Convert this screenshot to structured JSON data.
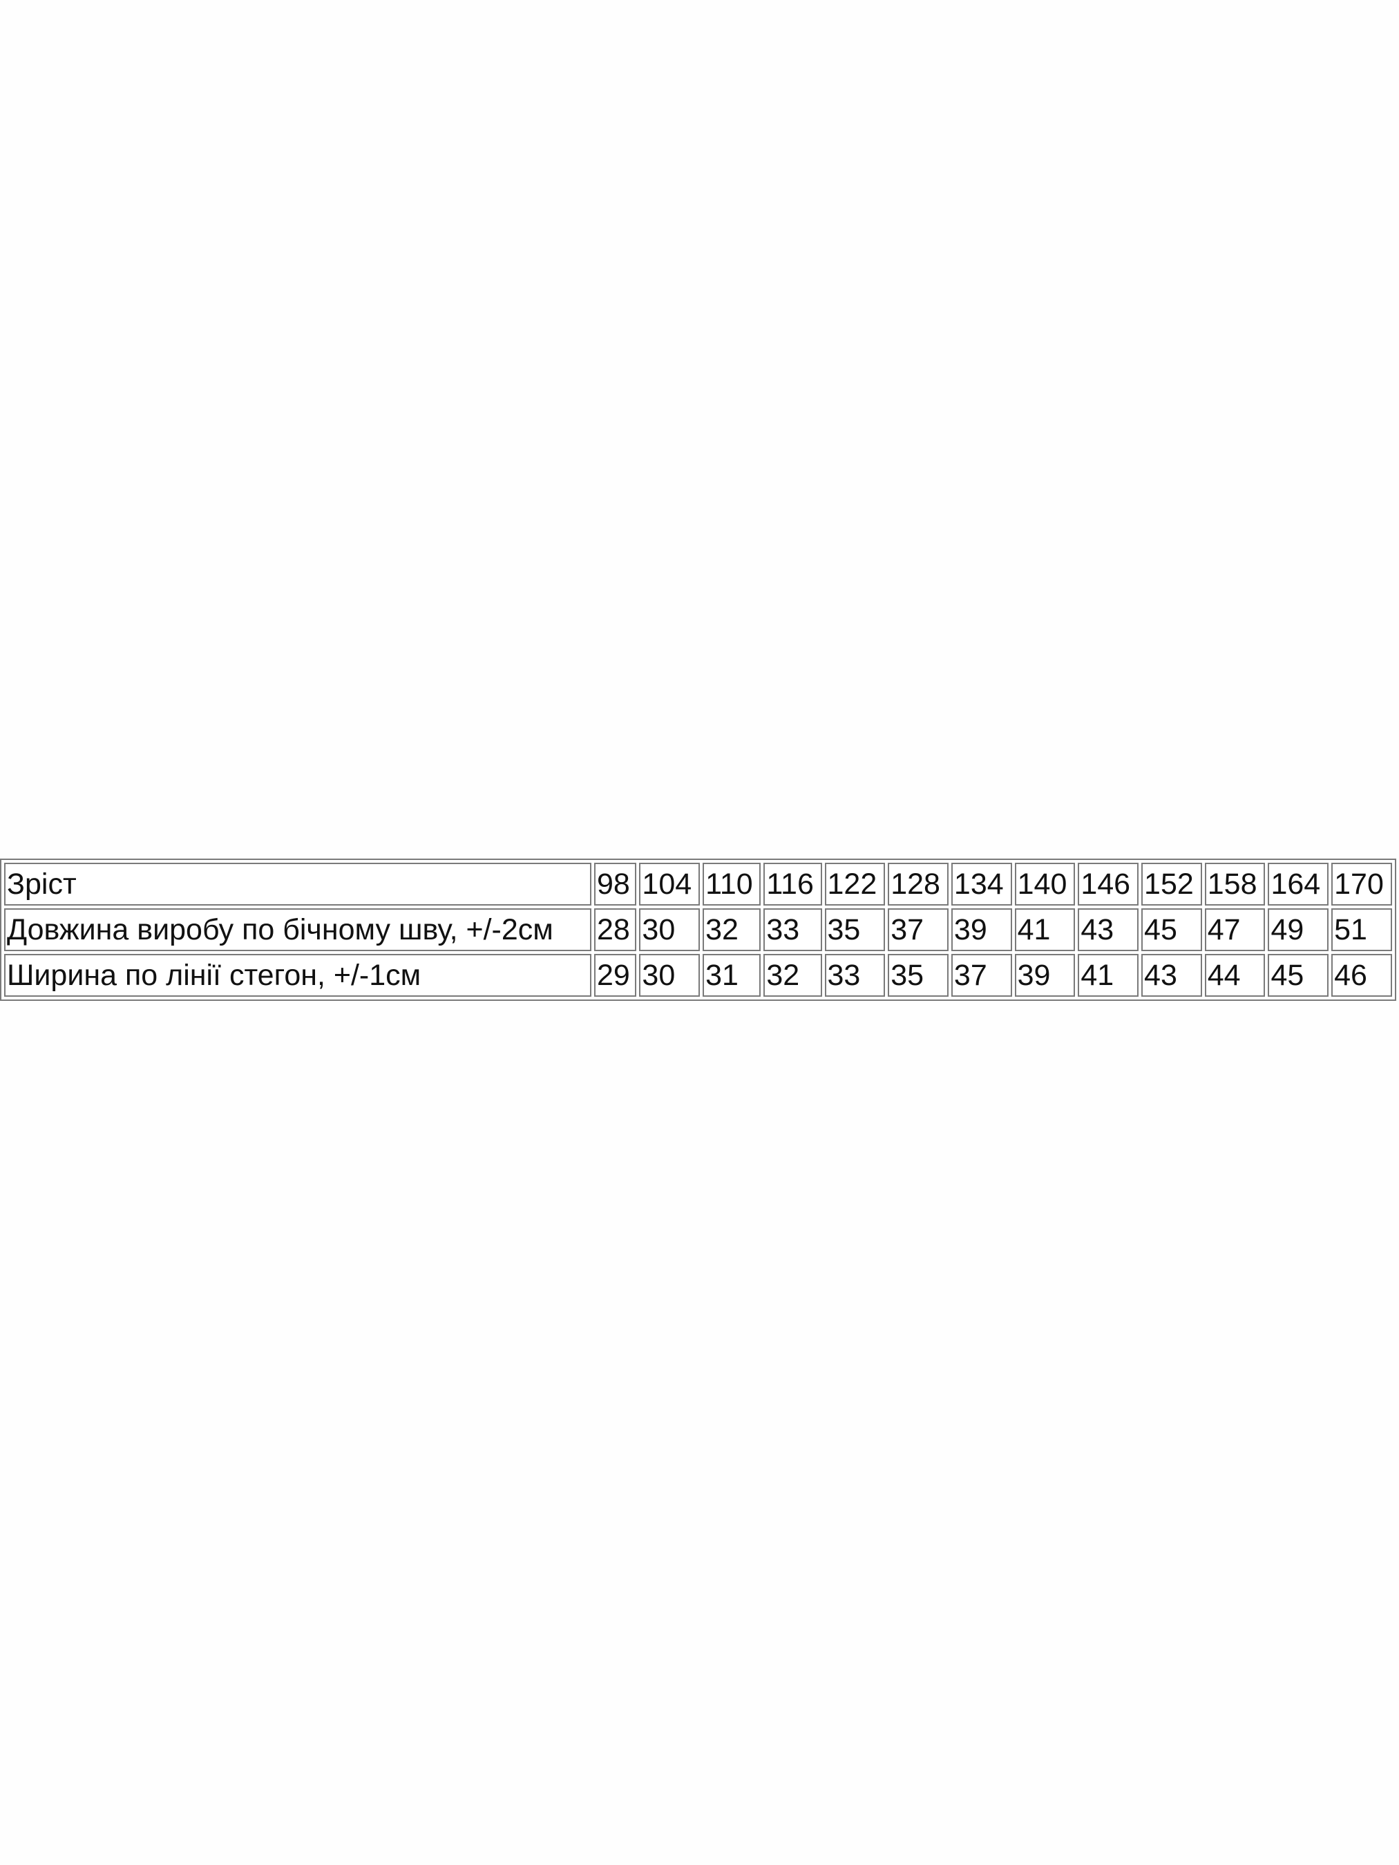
{
  "table": {
    "rows": [
      [
        "Зріст",
        "98",
        "104",
        "110",
        "116",
        "122",
        "128",
        "134",
        "140",
        "146",
        "152",
        "158",
        "164",
        "170"
      ],
      [
        "Довжина виробу по бічному шву, +/-2см",
        "28",
        "30",
        "32",
        "33",
        "35",
        "37",
        "39",
        "41",
        "43",
        "45",
        "47",
        "49",
        "51"
      ],
      [
        "Ширина по лінії стегон, +/-1см",
        "29",
        "30",
        "31",
        "32",
        "33",
        "35",
        "37",
        "39",
        "41",
        "43",
        "44",
        "45",
        "46"
      ]
    ]
  }
}
